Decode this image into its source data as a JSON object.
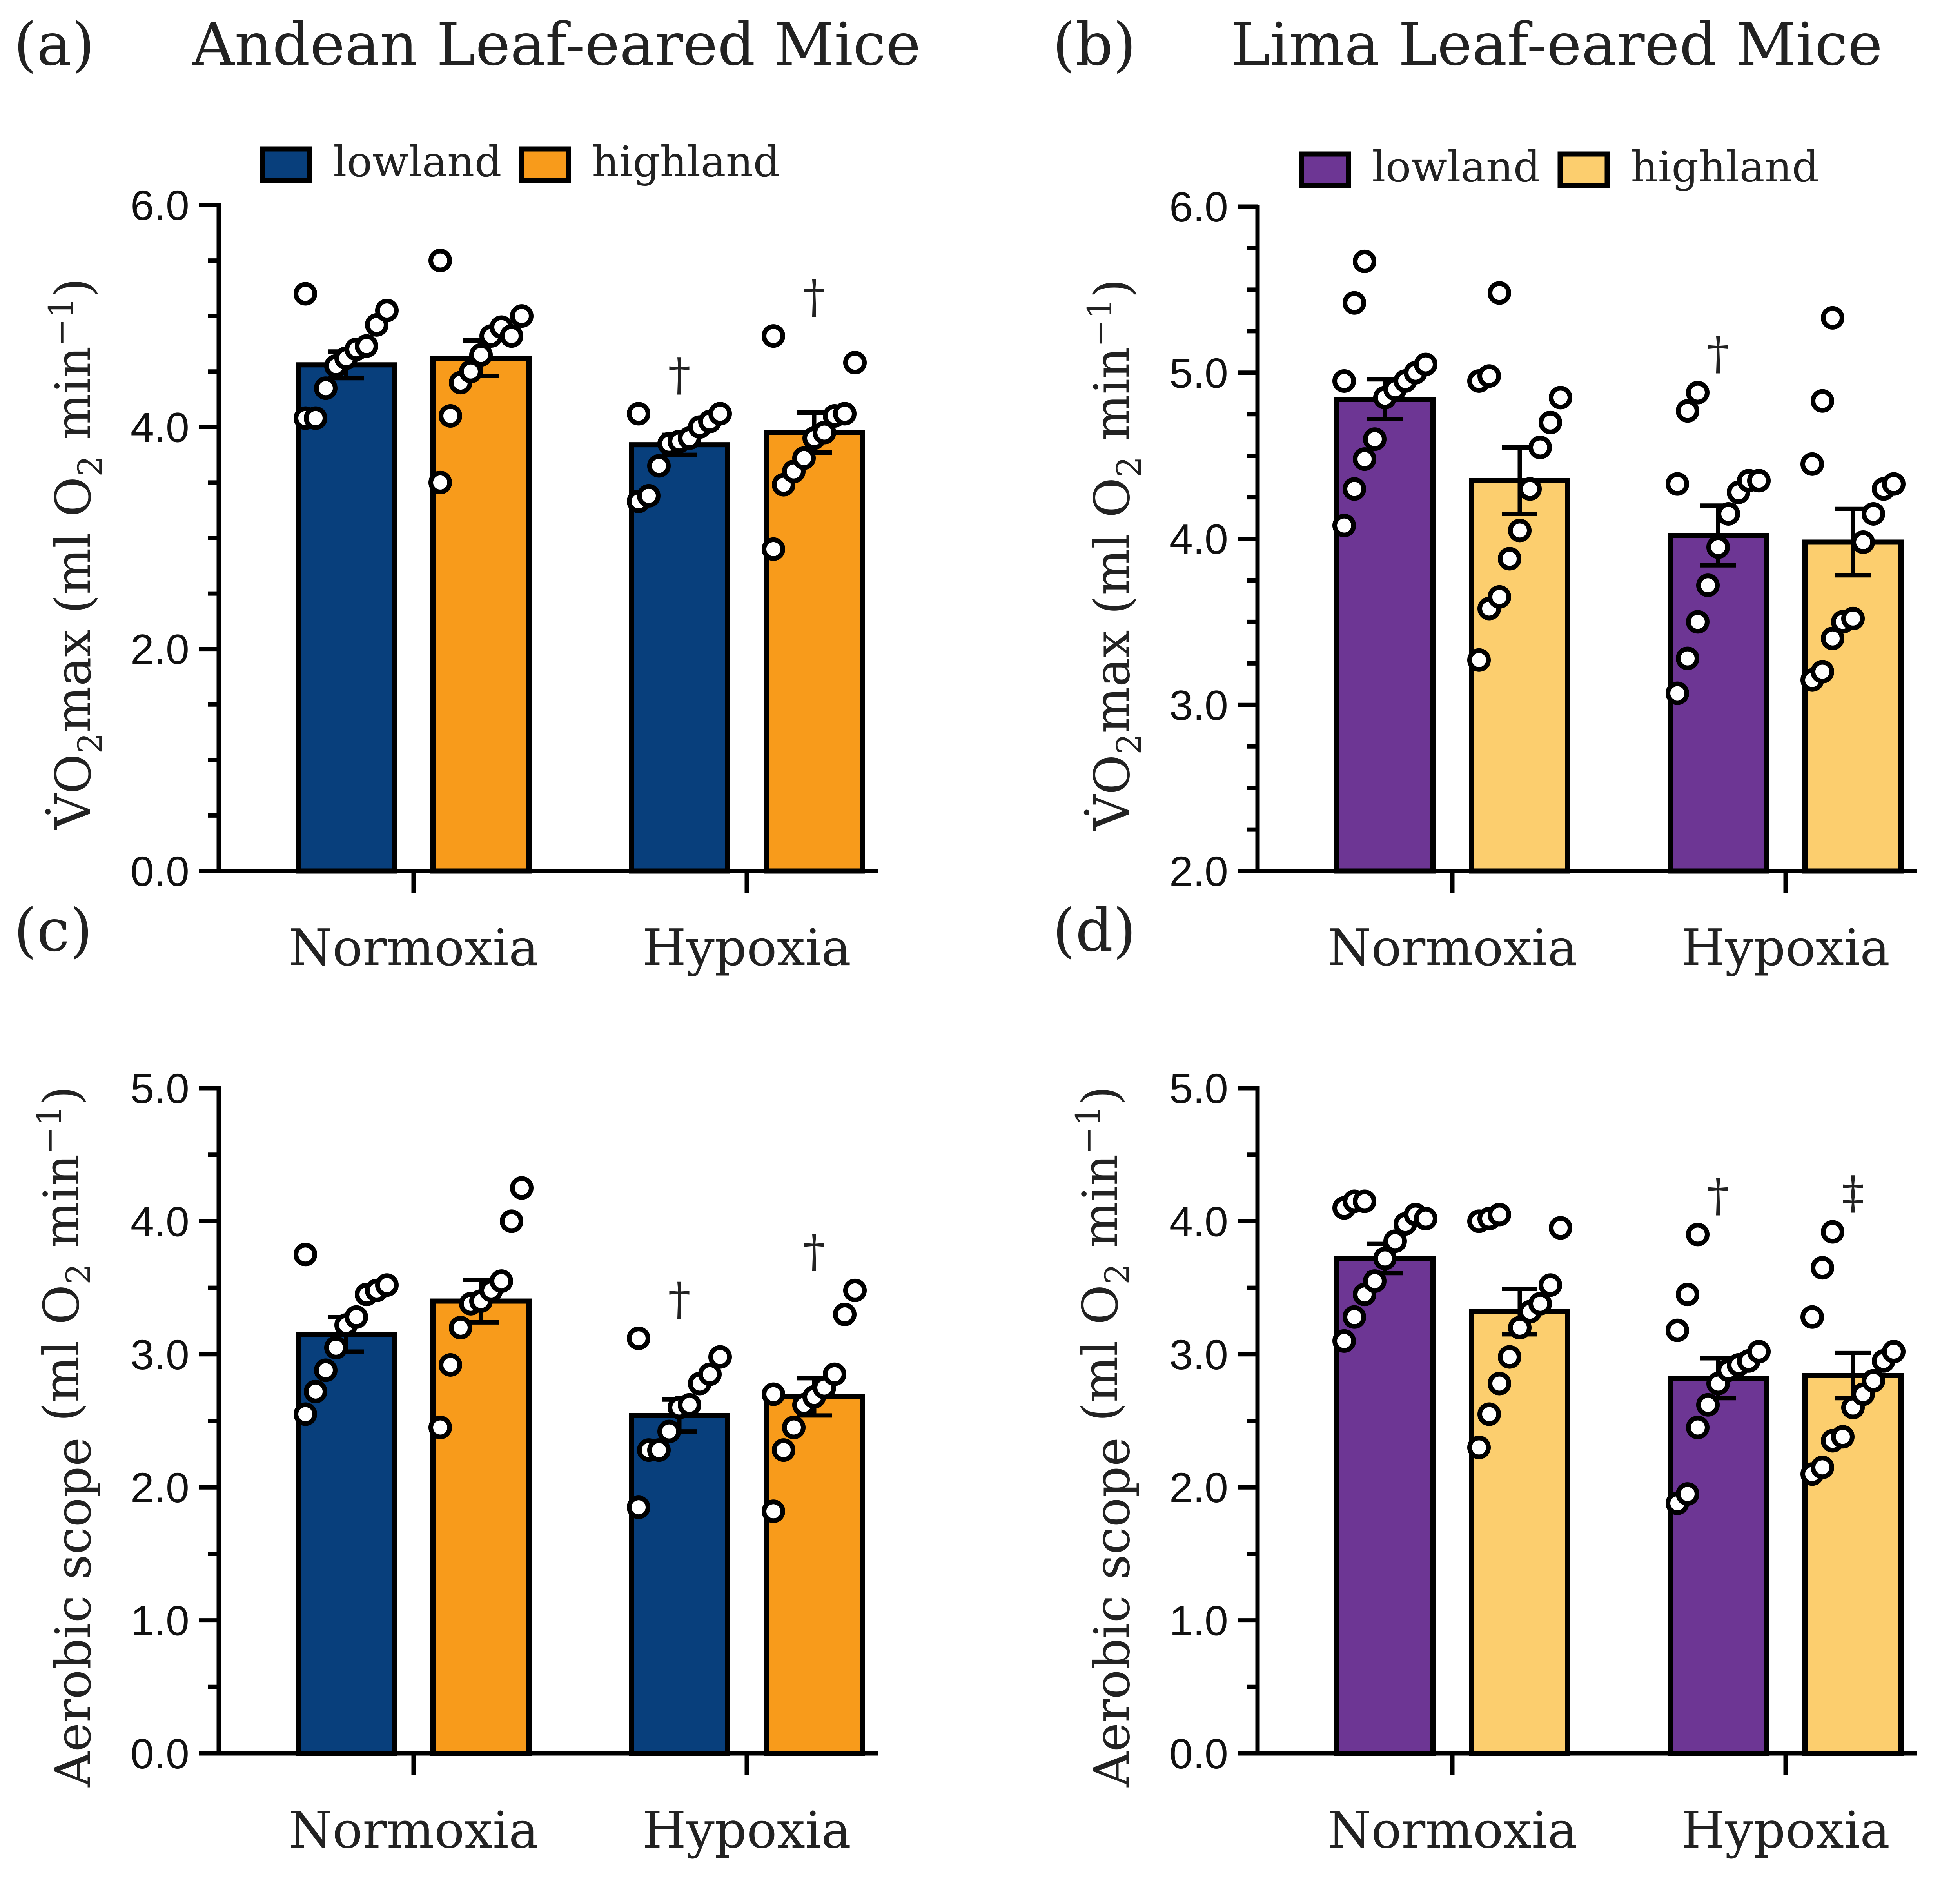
{
  "chart_data": [
    {
      "id": "a",
      "type": "bar",
      "panel_label": "(a)",
      "title": "Andean Leaf-eared Mice",
      "categories": [
        "Normoxia",
        "Hypoxia"
      ],
      "ylabel_prefix": "V̇O",
      "ylabel_sub": "2",
      "ylabel_rest": "max (ml O",
      "ylabel_sub2": "2",
      "ylabel_rest2": " min",
      "ylabel_sup": "−1",
      "ylabel_close": ")",
      "ylim": [
        0,
        6
      ],
      "yticks": [
        0,
        2,
        4,
        6
      ],
      "ytick_labels": [
        "0.0",
        "2.0",
        "4.0",
        "6.0"
      ],
      "minor_step": 0.5,
      "legend": [
        "lowland",
        "highland"
      ],
      "series": [
        {
          "name": "lowland",
          "color": "#083f7c",
          "values": [
            4.56,
            3.84
          ],
          "sem": [
            0.12,
            0.09
          ],
          "markers": [
            "",
            "†"
          ],
          "points": [
            [
              4.08,
              4.08,
              4.35,
              4.55,
              4.62,
              4.7,
              4.73,
              4.92,
              5.05,
              5.2
            ],
            [
              3.33,
              3.38,
              3.65,
              3.85,
              3.87,
              3.9,
              4.0,
              4.05,
              4.12,
              4.12
            ]
          ]
        },
        {
          "name": "highland",
          "color": "#f89b1b",
          "values": [
            4.62,
            3.95
          ],
          "sem": [
            0.16,
            0.18
          ],
          "markers": [
            "",
            "†"
          ],
          "points": [
            [
              3.5,
              4.1,
              4.4,
              4.5,
              4.65,
              4.82,
              4.9,
              4.82,
              5.0,
              5.5
            ],
            [
              2.9,
              3.48,
              3.6,
              3.72,
              3.9,
              3.95,
              4.1,
              4.12,
              4.58,
              4.82
            ]
          ]
        }
      ]
    },
    {
      "id": "b",
      "type": "bar",
      "panel_label": "(b)",
      "title": "Lima Leaf-eared Mice",
      "categories": [
        "Normoxia",
        "Hypoxia"
      ],
      "ylabel_prefix": "V̇O",
      "ylabel_sub": "2",
      "ylabel_rest": "max (ml O",
      "ylabel_sub2": "2",
      "ylabel_rest2": " min",
      "ylabel_sup": "−1",
      "ylabel_close": ")",
      "ylim": [
        2,
        6
      ],
      "yticks": [
        2,
        3,
        4,
        5,
        6
      ],
      "ytick_labels": [
        "2.0",
        "3.0",
        "4.0",
        "5.0",
        "6.0"
      ],
      "minor_step": 0.25,
      "legend": [
        "lowland",
        "highland"
      ],
      "series": [
        {
          "name": "lowland",
          "color": "#6d3694",
          "values": [
            4.84,
            4.02
          ],
          "sem": [
            0.12,
            0.18
          ],
          "markers": [
            "",
            "†"
          ],
          "points": [
            [
              4.08,
              4.3,
              4.48,
              4.6,
              4.85,
              4.9,
              4.95,
              5.0,
              5.05,
              4.95,
              5.42,
              5.67
            ],
            [
              3.07,
              3.28,
              3.5,
              3.72,
              3.95,
              4.15,
              4.28,
              4.35,
              4.35,
              4.33,
              4.77,
              4.88
            ]
          ]
        },
        {
          "name": "highland",
          "color": "#fcce6e",
          "values": [
            4.35,
            3.98
          ],
          "sem": [
            0.2,
            0.2
          ],
          "markers": [
            "",
            ""
          ],
          "points": [
            [
              3.27,
              3.58,
              3.65,
              3.88,
              4.05,
              4.3,
              4.55,
              4.7,
              4.85,
              4.95,
              4.98,
              5.48
            ],
            [
              3.15,
              3.2,
              3.4,
              3.5,
              3.52,
              3.98,
              4.15,
              4.3,
              4.33,
              4.45,
              4.83,
              5.33
            ]
          ]
        }
      ]
    },
    {
      "id": "c",
      "type": "bar",
      "panel_label": "(c)",
      "title": "",
      "categories": [
        "Normoxia",
        "Hypoxia"
      ],
      "ylabel_prefix": "Aerobic scope",
      "ylabel_sub": "",
      "ylabel_rest": " (ml O",
      "ylabel_sub2": "2",
      "ylabel_rest2": " min",
      "ylabel_sup": "−1",
      "ylabel_close": ")",
      "ylim": [
        0,
        5
      ],
      "yticks": [
        0,
        1,
        2,
        3,
        4,
        5
      ],
      "ytick_labels": [
        "0.0",
        "1.0",
        "2.0",
        "3.0",
        "4.0",
        "5.0"
      ],
      "minor_step": 0.5,
      "legend": [],
      "series": [
        {
          "name": "lowland",
          "color": "#083f7c",
          "values": [
            3.15,
            2.54
          ],
          "sem": [
            0.13,
            0.12
          ],
          "markers": [
            "",
            "†"
          ],
          "points": [
            [
              2.55,
              2.72,
              2.88,
              3.05,
              3.22,
              3.28,
              3.45,
              3.48,
              3.52,
              3.75
            ],
            [
              1.85,
              2.28,
              2.28,
              2.42,
              2.6,
              2.62,
              2.78,
              2.85,
              2.98,
              3.12
            ]
          ]
        },
        {
          "name": "highland",
          "color": "#f89b1b",
          "values": [
            3.4,
            2.68
          ],
          "sem": [
            0.16,
            0.14
          ],
          "markers": [
            "",
            "†"
          ],
          "points": [
            [
              2.45,
              2.92,
              3.2,
              3.38,
              3.4,
              3.48,
              3.55,
              4.0,
              4.25
            ],
            [
              1.82,
              2.28,
              2.45,
              2.62,
              2.68,
              2.75,
              2.85,
              3.3,
              3.48,
              2.7
            ]
          ]
        }
      ]
    },
    {
      "id": "d",
      "type": "bar",
      "panel_label": "(d)",
      "title": "",
      "categories": [
        "Normoxia",
        "Hypoxia"
      ],
      "ylabel_prefix": "Aerobic scope",
      "ylabel_sub": "",
      "ylabel_rest": " (ml O",
      "ylabel_sub2": "2",
      "ylabel_rest2": " min",
      "ylabel_sup": "−1",
      "ylabel_close": ")",
      "ylim": [
        0,
        5
      ],
      "yticks": [
        0,
        1,
        2,
        3,
        4,
        5
      ],
      "ytick_labels": [
        "0.0",
        "1.0",
        "2.0",
        "3.0",
        "4.0",
        "5.0"
      ],
      "minor_step": 0.5,
      "legend": [],
      "series": [
        {
          "name": "lowland",
          "color": "#6d3694",
          "values": [
            3.72,
            2.82
          ],
          "sem": [
            0.11,
            0.15
          ],
          "markers": [
            "",
            "†"
          ],
          "points": [
            [
              3.1,
              3.28,
              3.45,
              3.55,
              3.72,
              3.85,
              3.98,
              4.05,
              4.02,
              4.1,
              4.15,
              4.15
            ],
            [
              1.88,
              1.95,
              2.45,
              2.62,
              2.78,
              2.88,
              2.92,
              2.95,
              3.02,
              3.18,
              3.45,
              3.9
            ]
          ]
        },
        {
          "name": "highland",
          "color": "#fcce6e",
          "values": [
            3.32,
            2.84
          ],
          "sem": [
            0.17,
            0.17
          ],
          "markers": [
            "",
            "‡"
          ],
          "points": [
            [
              2.3,
              2.55,
              2.78,
              2.98,
              3.2,
              3.32,
              3.38,
              3.52,
              3.95,
              4.0,
              4.02,
              4.05
            ],
            [
              2.1,
              2.15,
              2.35,
              2.38,
              2.6,
              2.7,
              2.8,
              2.95,
              3.02,
              3.28,
              3.65,
              3.92
            ]
          ]
        }
      ]
    }
  ]
}
